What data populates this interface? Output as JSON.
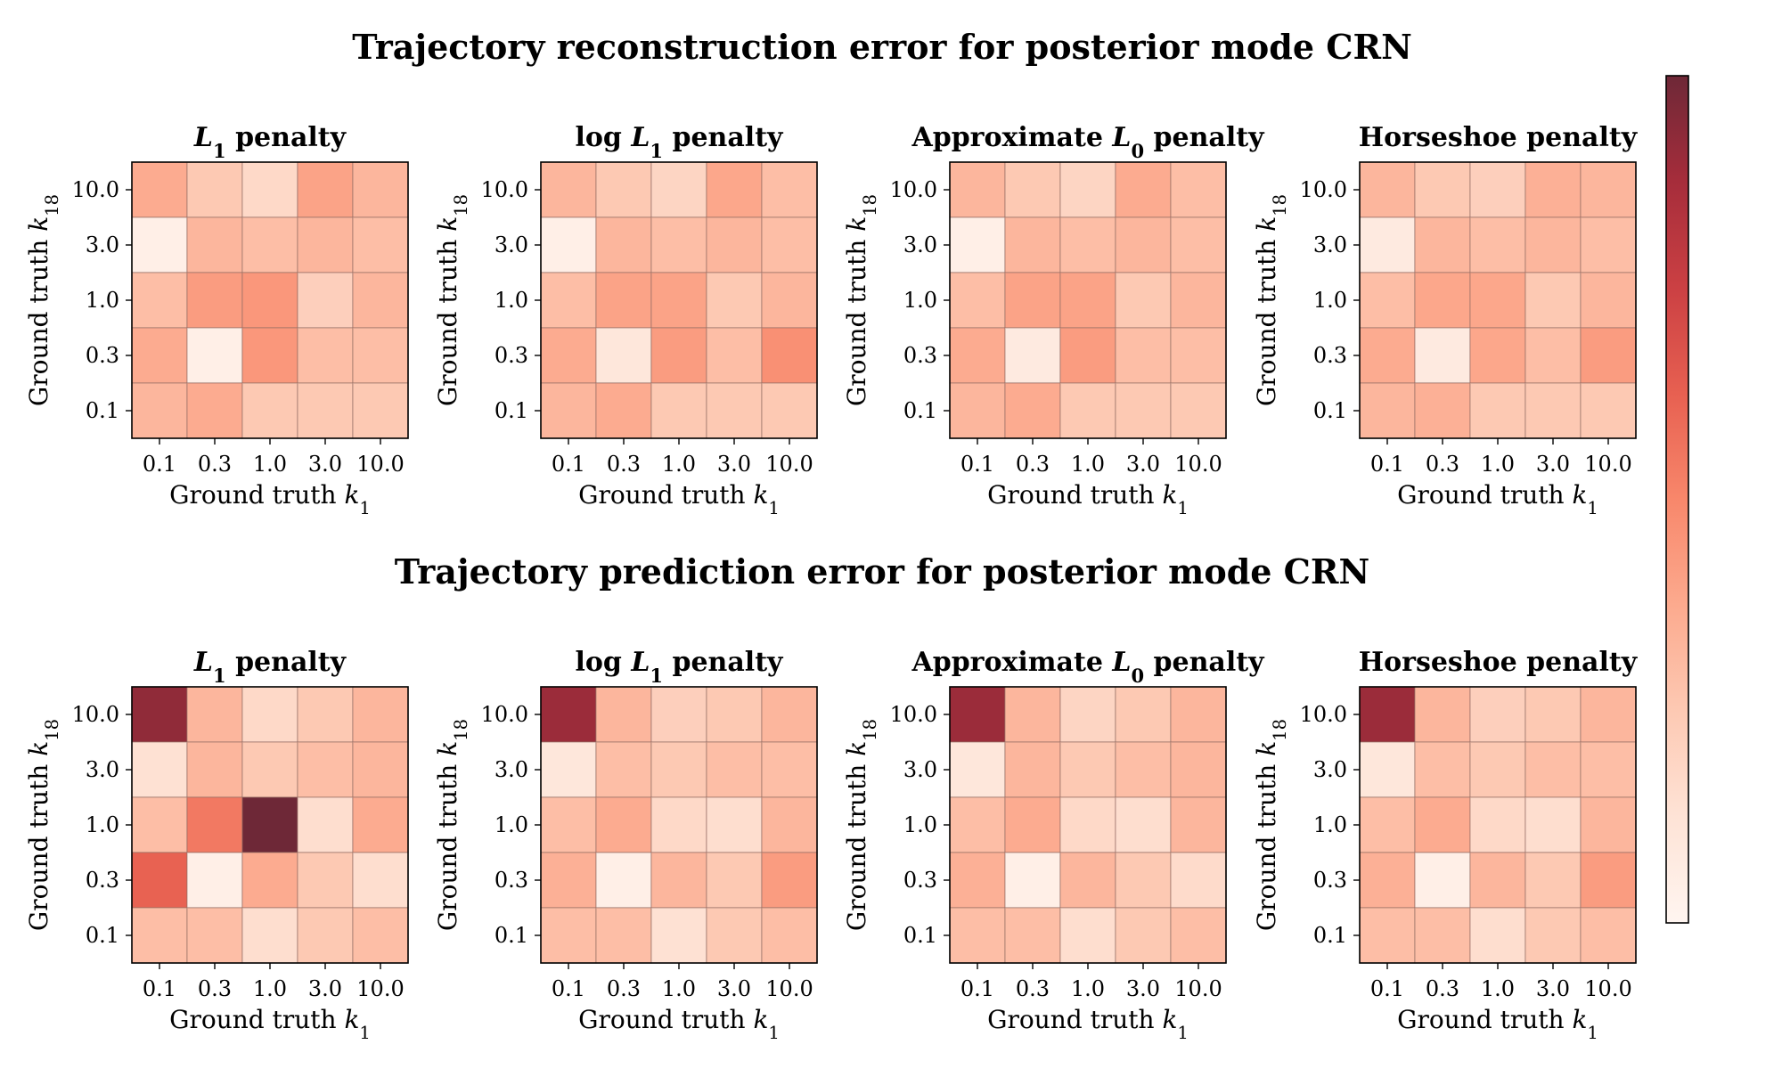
{
  "chart_data": {
    "type": "heatmap",
    "scale": "log",
    "colormap": "Reds",
    "colorbar": {
      "ticks": [
        "10^0",
        "10^{-1}",
        "10^{-2}",
        "10^{-3}"
      ],
      "range": [
        0.0002,
        2
      ]
    },
    "x_ticks": [
      "0.1",
      "0.3",
      "1.0",
      "3.0",
      "10.0"
    ],
    "y_ticks": [
      "10.0",
      "3.0",
      "1.0",
      "0.3",
      "0.1"
    ],
    "rows": [
      {
        "title": "Trajectory reconstruction error for posterior mode CRN",
        "panels": [
          {
            "title": "L1 penalty",
            "xlabel": "Ground truth k1",
            "ylabel": "Ground truth k18",
            "values": [
              [
                0.006,
                0.002,
                0.001,
                0.008,
                0.004
              ],
              [
                0.0003,
                0.004,
                0.003,
                0.004,
                0.003
              ],
              [
                0.003,
                0.01,
                0.012,
                0.0015,
                0.004
              ],
              [
                0.006,
                0.0003,
                0.012,
                0.003,
                0.003
              ],
              [
                0.004,
                0.006,
                0.002,
                0.002,
                0.002
              ]
            ]
          },
          {
            "title": "log L1 penalty",
            "xlabel": "Ground truth k1",
            "ylabel": "Ground truth k18",
            "values": [
              [
                0.004,
                0.002,
                0.0012,
                0.007,
                0.003
              ],
              [
                0.0003,
                0.004,
                0.003,
                0.004,
                0.003
              ],
              [
                0.003,
                0.008,
                0.008,
                0.002,
                0.004
              ],
              [
                0.006,
                0.0005,
                0.01,
                0.003,
                0.015
              ],
              [
                0.004,
                0.006,
                0.002,
                0.002,
                0.002
              ]
            ]
          },
          {
            "title": "Approximate L0 penalty",
            "xlabel": "Ground truth k1",
            "ylabel": "Ground truth k18",
            "values": [
              [
                0.004,
                0.002,
                0.0012,
                0.006,
                0.003
              ],
              [
                0.0003,
                0.004,
                0.003,
                0.004,
                0.003
              ],
              [
                0.003,
                0.008,
                0.008,
                0.002,
                0.004
              ],
              [
                0.006,
                0.0004,
                0.01,
                0.003,
                0.003
              ],
              [
                0.004,
                0.006,
                0.002,
                0.002,
                0.002
              ]
            ]
          },
          {
            "title": "Horseshoe penalty",
            "xlabel": "Ground truth k1",
            "ylabel": "Ground truth k18",
            "values": [
              [
                0.004,
                0.002,
                0.0015,
                0.005,
                0.004
              ],
              [
                0.0004,
                0.004,
                0.003,
                0.004,
                0.003
              ],
              [
                0.003,
                0.007,
                0.007,
                0.002,
                0.004
              ],
              [
                0.006,
                0.0004,
                0.007,
                0.003,
                0.01
              ],
              [
                0.004,
                0.005,
                0.002,
                0.002,
                0.002
              ]
            ]
          }
        ]
      },
      {
        "title": "Trajectory prediction error for posterior mode CRN",
        "panels": [
          {
            "title": "L1 penalty",
            "xlabel": "Ground truth k1",
            "ylabel": "Ground truth k18",
            "values": [
              [
                1.0,
                0.004,
                0.001,
                0.002,
                0.004
              ],
              [
                0.0007,
                0.004,
                0.002,
                0.003,
                0.004
              ],
              [
                0.003,
                0.03,
                2.0,
                0.0008,
                0.006
              ],
              [
                0.06,
                0.0003,
                0.006,
                0.002,
                0.0008
              ],
              [
                0.003,
                0.003,
                0.0008,
                0.002,
                0.003
              ]
            ]
          },
          {
            "title": "log L1 penalty",
            "xlabel": "Ground truth k1",
            "ylabel": "Ground truth k18",
            "values": [
              [
                0.8,
                0.004,
                0.0015,
                0.002,
                0.004
              ],
              [
                0.0005,
                0.003,
                0.002,
                0.003,
                0.003
              ],
              [
                0.003,
                0.006,
                0.001,
                0.0008,
                0.004
              ],
              [
                0.005,
                0.0003,
                0.004,
                0.002,
                0.01
              ],
              [
                0.003,
                0.003,
                0.0007,
                0.002,
                0.003
              ]
            ]
          },
          {
            "title": "Approximate L0 penalty",
            "xlabel": "Ground truth k1",
            "ylabel": "Ground truth k18",
            "values": [
              [
                0.8,
                0.004,
                0.0012,
                0.002,
                0.004
              ],
              [
                0.0005,
                0.004,
                0.002,
                0.003,
                0.004
              ],
              [
                0.003,
                0.006,
                0.001,
                0.0008,
                0.004
              ],
              [
                0.005,
                0.0003,
                0.004,
                0.002,
                0.0009
              ],
              [
                0.003,
                0.003,
                0.0008,
                0.002,
                0.003
              ]
            ]
          },
          {
            "title": "Horseshoe penalty",
            "xlabel": "Ground truth k1",
            "ylabel": "Ground truth k18",
            "values": [
              [
                0.8,
                0.004,
                0.0015,
                0.002,
                0.004
              ],
              [
                0.0005,
                0.003,
                0.002,
                0.003,
                0.003
              ],
              [
                0.003,
                0.006,
                0.001,
                0.0008,
                0.004
              ],
              [
                0.005,
                0.0003,
                0.004,
                0.002,
                0.01
              ],
              [
                0.003,
                0.003,
                0.0008,
                0.002,
                0.003
              ]
            ]
          }
        ]
      }
    ]
  }
}
